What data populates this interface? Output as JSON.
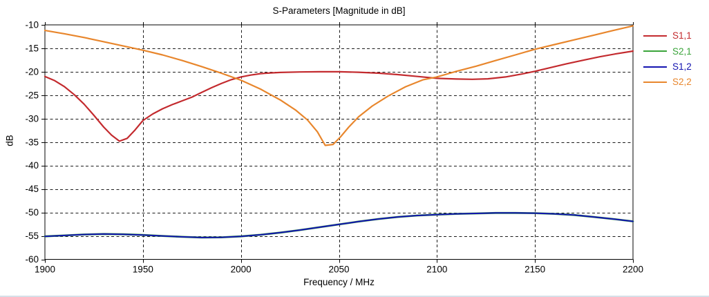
{
  "title": "S-Parameters [Magnitude in dB]",
  "axes": {
    "x": {
      "label": "Frequency / MHz",
      "min": 1900,
      "max": 2200,
      "step": 50,
      "ticks": [
        "1900",
        "1950",
        "2000",
        "2050",
        "2100",
        "2150",
        "2200"
      ]
    },
    "y": {
      "label": "dB",
      "min": -60,
      "max": -10,
      "step": 5,
      "ticks": [
        "-10",
        "-15",
        "-20",
        "-25",
        "-30",
        "-35",
        "-40",
        "-45",
        "-50",
        "-55",
        "-60"
      ]
    }
  },
  "colors": {
    "grid": "#1a1a1a",
    "frame": "#000000",
    "text": "#000000",
    "s11": "#c32a2e",
    "s21": "#3aa43a",
    "s12": "#1313b0",
    "s22": "#e8862c"
  },
  "chart_data": {
    "type": "line",
    "title": "S-Parameters [Magnitude in dB]",
    "xlabel": "Frequency / MHz",
    "ylabel": "dB",
    "xlim": [
      1900,
      2200
    ],
    "ylim": [
      -60,
      -10
    ],
    "grid": "dashed",
    "legend_position": "right-outside",
    "series": [
      {
        "name": "S1,1",
        "color": "#c32a2e",
        "points": [
          [
            1900,
            -21.0
          ],
          [
            1905,
            -21.9
          ],
          [
            1910,
            -23.2
          ],
          [
            1915,
            -24.9
          ],
          [
            1920,
            -26.9
          ],
          [
            1925,
            -29.3
          ],
          [
            1930,
            -31.8
          ],
          [
            1934,
            -33.5
          ],
          [
            1938,
            -34.8
          ],
          [
            1942,
            -34.2
          ],
          [
            1946,
            -32.4
          ],
          [
            1950,
            -30.4
          ],
          [
            1955,
            -29.0
          ],
          [
            1960,
            -27.9
          ],
          [
            1965,
            -27.0
          ],
          [
            1970,
            -26.2
          ],
          [
            1975,
            -25.4
          ],
          [
            1980,
            -24.4
          ],
          [
            1985,
            -23.4
          ],
          [
            1990,
            -22.5
          ],
          [
            1995,
            -21.7
          ],
          [
            2000,
            -21.1
          ],
          [
            2005,
            -20.7
          ],
          [
            2010,
            -20.4
          ],
          [
            2015,
            -20.25
          ],
          [
            2020,
            -20.15
          ],
          [
            2030,
            -20.05
          ],
          [
            2040,
            -20.0
          ],
          [
            2050,
            -20.0
          ],
          [
            2060,
            -20.1
          ],
          [
            2070,
            -20.3
          ],
          [
            2080,
            -20.6
          ],
          [
            2090,
            -21.0
          ],
          [
            2100,
            -21.4
          ],
          [
            2110,
            -21.55
          ],
          [
            2118,
            -21.6
          ],
          [
            2126,
            -21.5
          ],
          [
            2135,
            -21.1
          ],
          [
            2143,
            -20.5
          ],
          [
            2150,
            -19.9
          ],
          [
            2158,
            -19.1
          ],
          [
            2166,
            -18.3
          ],
          [
            2175,
            -17.5
          ],
          [
            2183,
            -16.8
          ],
          [
            2191,
            -16.2
          ],
          [
            2200,
            -15.6
          ]
        ]
      },
      {
        "name": "S2,1",
        "color": "#3aa43a",
        "points": [
          [
            1900,
            -55.1
          ],
          [
            1910,
            -54.9
          ],
          [
            1920,
            -54.7
          ],
          [
            1930,
            -54.6
          ],
          [
            1940,
            -54.65
          ],
          [
            1950,
            -54.8
          ],
          [
            1960,
            -55.0
          ],
          [
            1970,
            -55.2
          ],
          [
            1980,
            -55.35
          ],
          [
            1990,
            -55.3
          ],
          [
            2000,
            -55.1
          ],
          [
            2010,
            -54.75
          ],
          [
            2020,
            -54.3
          ],
          [
            2030,
            -53.75
          ],
          [
            2040,
            -53.15
          ],
          [
            2050,
            -52.55
          ],
          [
            2060,
            -51.95
          ],
          [
            2070,
            -51.4
          ],
          [
            2080,
            -50.95
          ],
          [
            2090,
            -50.65
          ],
          [
            2100,
            -50.45
          ],
          [
            2110,
            -50.3
          ],
          [
            2120,
            -50.2
          ],
          [
            2130,
            -50.1
          ],
          [
            2140,
            -50.1
          ],
          [
            2150,
            -50.15
          ],
          [
            2160,
            -50.3
          ],
          [
            2170,
            -50.55
          ],
          [
            2180,
            -50.95
          ],
          [
            2190,
            -51.4
          ],
          [
            2200,
            -51.9
          ]
        ]
      },
      {
        "name": "S1,2",
        "color": "#1313b0",
        "points": [
          [
            1900,
            -55.1
          ],
          [
            1910,
            -54.9
          ],
          [
            1920,
            -54.7
          ],
          [
            1930,
            -54.6
          ],
          [
            1940,
            -54.65
          ],
          [
            1950,
            -54.8
          ],
          [
            1960,
            -55.0
          ],
          [
            1970,
            -55.2
          ],
          [
            1980,
            -55.35
          ],
          [
            1990,
            -55.3
          ],
          [
            2000,
            -55.1
          ],
          [
            2010,
            -54.75
          ],
          [
            2020,
            -54.3
          ],
          [
            2030,
            -53.75
          ],
          [
            2040,
            -53.15
          ],
          [
            2050,
            -52.55
          ],
          [
            2060,
            -51.95
          ],
          [
            2070,
            -51.4
          ],
          [
            2080,
            -50.95
          ],
          [
            2090,
            -50.65
          ],
          [
            2100,
            -50.45
          ],
          [
            2110,
            -50.3
          ],
          [
            2120,
            -50.2
          ],
          [
            2130,
            -50.1
          ],
          [
            2140,
            -50.1
          ],
          [
            2150,
            -50.15
          ],
          [
            2160,
            -50.3
          ],
          [
            2170,
            -50.55
          ],
          [
            2180,
            -50.95
          ],
          [
            2190,
            -51.4
          ],
          [
            2200,
            -51.9
          ]
        ]
      },
      {
        "name": "S2,2",
        "color": "#e8862c",
        "points": [
          [
            1900,
            -11.2
          ],
          [
            1910,
            -11.9
          ],
          [
            1920,
            -12.7
          ],
          [
            1930,
            -13.6
          ],
          [
            1940,
            -14.5
          ],
          [
            1950,
            -15.4
          ],
          [
            1960,
            -16.4
          ],
          [
            1970,
            -17.6
          ],
          [
            1980,
            -18.9
          ],
          [
            1990,
            -20.3
          ],
          [
            2000,
            -21.8
          ],
          [
            2010,
            -23.7
          ],
          [
            2020,
            -26.0
          ],
          [
            2028,
            -28.2
          ],
          [
            2034,
            -30.3
          ],
          [
            2039,
            -32.8
          ],
          [
            2043,
            -35.7
          ],
          [
            2047,
            -35.5
          ],
          [
            2051,
            -33.8
          ],
          [
            2055,
            -31.8
          ],
          [
            2060,
            -29.6
          ],
          [
            2067,
            -27.3
          ],
          [
            2075,
            -25.2
          ],
          [
            2084,
            -23.2
          ],
          [
            2093,
            -21.7
          ],
          [
            2100,
            -21.1
          ],
          [
            2110,
            -19.9
          ],
          [
            2120,
            -18.8
          ],
          [
            2130,
            -17.6
          ],
          [
            2140,
            -16.4
          ],
          [
            2150,
            -15.2
          ],
          [
            2160,
            -14.2
          ],
          [
            2170,
            -13.2
          ],
          [
            2180,
            -12.2
          ],
          [
            2190,
            -11.2
          ],
          [
            2200,
            -10.2
          ]
        ]
      }
    ]
  }
}
